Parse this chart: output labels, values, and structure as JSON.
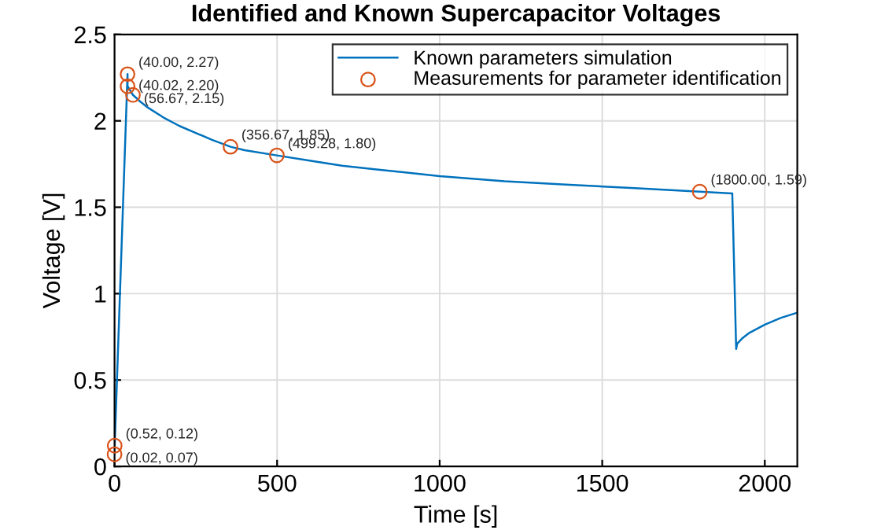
{
  "chart_data": {
    "type": "line",
    "title": "Identified and Known Supercapacitor Voltages",
    "xlabel": "Time [s]",
    "ylabel": "Voltage [V]",
    "xlim": [
      0,
      2100
    ],
    "xticks": [
      0,
      500,
      1000,
      1500,
      2000
    ],
    "ylim": [
      0,
      2.5
    ],
    "yticks": [
      0,
      0.5,
      1,
      1.5,
      2,
      2.5
    ],
    "grid": true,
    "legend": "top right",
    "series": [
      {
        "name": "Known parameters simulation",
        "color": "#0072bd",
        "line_style": "solid",
        "x": [
          0,
          0.52,
          40,
          40.02,
          56.67,
          80,
          100,
          150,
          200,
          250,
          300,
          356.67,
          400,
          499.28,
          600,
          700,
          800,
          1000,
          1200,
          1400,
          1600,
          1800,
          1900,
          1912,
          1915,
          1930,
          1950,
          2000,
          2050,
          2100
        ],
        "values": [
          0.07,
          0.12,
          2.27,
          2.2,
          2.15,
          2.11,
          2.08,
          2.02,
          1.97,
          1.93,
          1.89,
          1.85,
          1.83,
          1.8,
          1.77,
          1.74,
          1.72,
          1.68,
          1.65,
          1.63,
          1.61,
          1.59,
          1.58,
          0.68,
          0.71,
          0.74,
          0.77,
          0.82,
          0.86,
          0.89
        ]
      },
      {
        "name": "Measurements for parameter identification",
        "type": "scatter",
        "marker": "circle",
        "color": "#d95319",
        "x": [
          0.02,
          0.52,
          40,
          40.02,
          56.67,
          356.67,
          499.28,
          1800
        ],
        "values": [
          0.07,
          0.12,
          2.27,
          2.2,
          2.15,
          1.85,
          1.8,
          1.59
        ]
      }
    ],
    "annotations": [
      {
        "text": "(0.02, 0.07)",
        "x": 0.02,
        "y": 0.07
      },
      {
        "text": "(0.52, 0.12)",
        "x": 0.52,
        "y": 0.12
      },
      {
        "text": "(40.00, 2.27)",
        "x": 40,
        "y": 2.27
      },
      {
        "text": "(40.02, 2.20)",
        "x": 40.02,
        "y": 2.2
      },
      {
        "text": "(56.67, 2.15)",
        "x": 56.67,
        "y": 2.15
      },
      {
        "text": "(356.67, 1.85)",
        "x": 356.67,
        "y": 1.85
      },
      {
        "text": "(499.28, 1.80)",
        "x": 499.28,
        "y": 1.8
      },
      {
        "text": "(1800.00, 1.59)",
        "x": 1800,
        "y": 1.59
      }
    ]
  }
}
